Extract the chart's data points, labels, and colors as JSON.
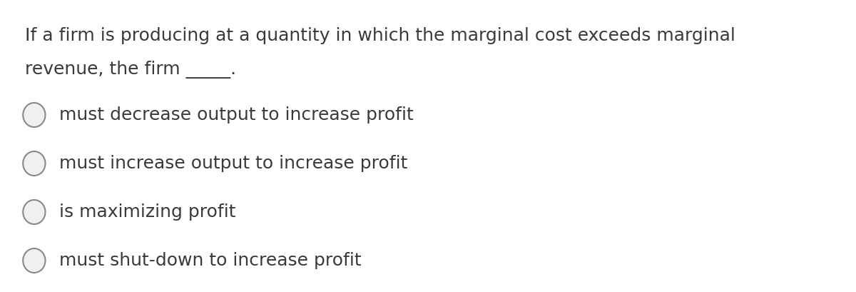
{
  "background_color": "#ffffff",
  "question_line1": "If a firm is producing at a quantity in which the marginal cost exceeds marginal",
  "question_line2": "revenue, the firm _____.",
  "options": [
    "must decrease output to increase profit",
    "must increase output to increase profit",
    "is maximizing profit",
    "must shut-down to increase profit"
  ],
  "text_color": "#3a3a3a",
  "question_fontsize": 18,
  "option_fontsize": 18,
  "circle_edge_color": "#888888",
  "circle_face_color": "#f0f0f0",
  "circle_linewidth": 1.5
}
